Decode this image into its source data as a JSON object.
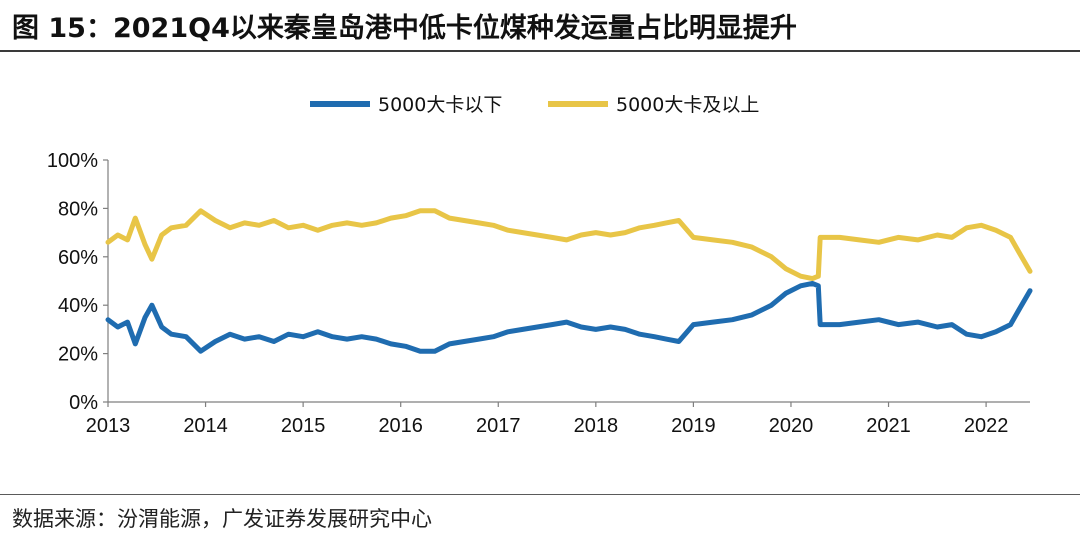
{
  "title": "图 15：2021Q4以来秦皇岛港中低卡位煤种发运量占比明显提升",
  "source": "数据来源：汾渭能源，广发证券发展研究中心",
  "chart_data": {
    "type": "line",
    "ylim": [
      0,
      100
    ],
    "y_tick_labels": [
      "0%",
      "20%",
      "40%",
      "60%",
      "80%",
      "100%"
    ],
    "y_tick_values": [
      0,
      20,
      40,
      60,
      80,
      100
    ],
    "x_tick_labels": [
      "2013",
      "2014",
      "2015",
      "2016",
      "2017",
      "2018",
      "2019",
      "2020",
      "2021",
      "2022"
    ],
    "x_tick_values": [
      2013,
      2014,
      2015,
      2016,
      2017,
      2018,
      2019,
      2020,
      2021,
      2022
    ],
    "xlim": [
      2013.0,
      2022.45
    ],
    "legend_position": "top-center",
    "grid": false,
    "x": [
      2013.0,
      2013.1,
      2013.2,
      2013.28,
      2013.38,
      2013.45,
      2013.55,
      2013.65,
      2013.8,
      2013.95,
      2014.1,
      2014.25,
      2014.4,
      2014.55,
      2014.7,
      2014.85,
      2015.0,
      2015.15,
      2015.3,
      2015.45,
      2015.6,
      2015.75,
      2015.9,
      2016.05,
      2016.2,
      2016.35,
      2016.5,
      2016.65,
      2016.8,
      2016.95,
      2017.1,
      2017.25,
      2017.4,
      2017.55,
      2017.7,
      2017.85,
      2018.0,
      2018.15,
      2018.3,
      2018.45,
      2018.6,
      2018.72,
      2018.85,
      2019.0,
      2019.2,
      2019.4,
      2019.6,
      2019.8,
      2019.95,
      2020.1,
      2020.22,
      2020.28,
      2020.3,
      2020.5,
      2020.7,
      2020.9,
      2021.1,
      2021.3,
      2021.5,
      2021.65,
      2021.8,
      2021.95,
      2022.1,
      2022.25,
      2022.35,
      2022.45
    ],
    "series": [
      {
        "name": "5000大卡以下",
        "color": "#1F6CB0",
        "values": [
          34,
          31,
          33,
          24,
          35,
          40,
          31,
          28,
          27,
          21,
          25,
          28,
          26,
          27,
          25,
          28,
          27,
          29,
          27,
          26,
          27,
          26,
          24,
          23,
          21,
          21,
          24,
          25,
          26,
          27,
          29,
          30,
          31,
          32,
          33,
          31,
          30,
          31,
          30,
          28,
          27,
          26,
          25,
          32,
          33,
          34,
          36,
          40,
          45,
          48,
          49,
          48,
          32,
          32,
          33,
          34,
          32,
          33,
          31,
          32,
          28,
          27,
          29,
          32,
          39,
          46
        ],
        "labels_printed": false
      },
      {
        "name": "5000大卡及以上",
        "color": "#E8C547",
        "values": [
          66,
          69,
          67,
          76,
          65,
          59,
          69,
          72,
          73,
          79,
          75,
          72,
          74,
          73,
          75,
          72,
          73,
          71,
          73,
          74,
          73,
          74,
          76,
          77,
          79,
          79,
          76,
          75,
          74,
          73,
          71,
          70,
          69,
          68,
          67,
          69,
          70,
          69,
          70,
          72,
          73,
          74,
          75,
          68,
          67,
          66,
          64,
          60,
          55,
          52,
          51,
          52,
          68,
          68,
          67,
          66,
          68,
          67,
          69,
          68,
          72,
          73,
          71,
          68,
          61,
          54
        ]
      }
    ]
  }
}
